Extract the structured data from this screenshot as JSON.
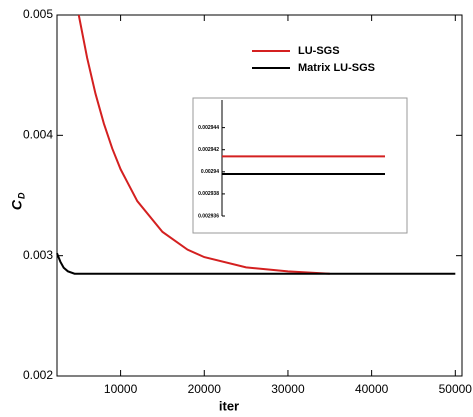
{
  "chart_data": [
    {
      "type": "line",
      "x_label": "iter",
      "y_label": [
        "C",
        "D"
      ],
      "xlim": [
        2400,
        50800
      ],
      "ylim": [
        0.002,
        0.005
      ],
      "xticks": [
        10000,
        20000,
        30000,
        40000,
        50000
      ],
      "yticks": [
        0.002,
        0.003,
        0.004,
        0.005
      ],
      "legend": "top-right",
      "series": [
        {
          "name": "LU-SGS",
          "color": "#d42020",
          "x": [
            5000,
            6000,
            7000,
            8000,
            9000,
            10000,
            12000,
            15000,
            18000,
            20000,
            25000,
            30000,
            35000
          ],
          "values": [
            0.005,
            0.004644,
            0.004346,
            0.004098,
            0.003891,
            0.003718,
            0.003453,
            0.003198,
            0.00305,
            0.002988,
            0.002903,
            0.002869,
            0.00285
          ]
        },
        {
          "name": "Matrix LU-SGS",
          "color": "#000000",
          "x": [
            2400,
            2800,
            3200,
            3700,
            4500,
            50000
          ],
          "values": [
            0.00302,
            0.00295,
            0.0029,
            0.00287,
            0.00285,
            0.00285
          ]
        }
      ]
    },
    {
      "type": "line",
      "ylim": [
        0.002936,
        0.0029465
      ],
      "yticks": [
        0.002936,
        0.002938,
        0.00294,
        0.002942,
        0.002944
      ],
      "series": [
        {
          "color": "#d42020",
          "values": [
            0.0029414,
            0.0029414
          ]
        },
        {
          "color": "#000000",
          "values": [
            0.0029398,
            0.0029398
          ]
        }
      ]
    }
  ]
}
